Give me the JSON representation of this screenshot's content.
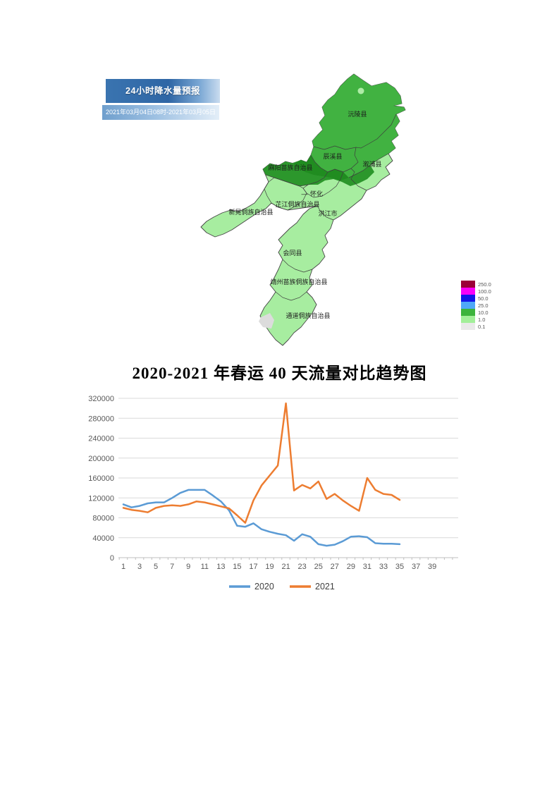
{
  "weather_map": {
    "title": "24小时降水量预报",
    "date_range": "2021年03月04日08时-2021年03月05日08时",
    "regions": [
      {
        "name": "沅陵县"
      },
      {
        "name": "辰溪县"
      },
      {
        "name": "溆浦县"
      },
      {
        "name": "麻阳苗族自治县"
      },
      {
        "name": "怀化"
      },
      {
        "name": "芷江侗族自治县"
      },
      {
        "name": "新晃侗族自治县"
      },
      {
        "name": "洪江市"
      },
      {
        "name": "会同县"
      },
      {
        "name": "靖州苗族侗族自治县"
      },
      {
        "name": "通道侗族自治县"
      }
    ],
    "hyphen_marker": "—",
    "fill_colors": {
      "light_rain": "#a7eda0",
      "medium_rain": "#41b241",
      "heavy_rain": "#2c972c",
      "heaviest_band": "#1f8a1f",
      "no_rain_patch": "#dcdcdc",
      "spot_dot": "#aeeca6"
    },
    "legend": {
      "items": [
        {
          "label": "250.0",
          "color": "#9b0038"
        },
        {
          "label": "100.0",
          "color": "#f800f8"
        },
        {
          "label": "50.0",
          "color": "#1414e8"
        },
        {
          "label": "25.0",
          "color": "#4fa8f8"
        },
        {
          "label": "10.0",
          "color": "#3cb43c"
        },
        {
          "label": "1.0",
          "color": "#a2ef99"
        },
        {
          "label": "0.1",
          "color": "#e9e9e9"
        }
      ]
    }
  },
  "chart_data": {
    "type": "line",
    "title": "2020-2021 年春运 40 天流量对比趋势图",
    "xlabel": "",
    "ylabel": "",
    "ylim": [
      0,
      320000
    ],
    "y_ticks": [
      0,
      40000,
      80000,
      120000,
      160000,
      200000,
      240000,
      280000,
      320000
    ],
    "x_tick_labels": [
      1,
      3,
      5,
      7,
      9,
      11,
      13,
      15,
      17,
      19,
      21,
      23,
      25,
      27,
      29,
      31,
      33,
      35,
      37,
      39
    ],
    "x_range": [
      1,
      40
    ],
    "grid": true,
    "legend_position": "bottom",
    "x": [
      1,
      2,
      3,
      4,
      5,
      6,
      7,
      8,
      9,
      10,
      11,
      12,
      13,
      14,
      15,
      16,
      17,
      18,
      19,
      20,
      21,
      22,
      23,
      24,
      25,
      26,
      27,
      28,
      29,
      30,
      31,
      32,
      33,
      34,
      35
    ],
    "series": [
      {
        "name": "2020",
        "color": "#5B9BD5",
        "values": [
          107000,
          101000,
          104000,
          109000,
          111000,
          111000,
          120000,
          130000,
          136000,
          136000,
          136000,
          125000,
          113000,
          95000,
          64000,
          62000,
          69000,
          57000,
          52000,
          48000,
          45000,
          34000,
          47000,
          42000,
          27000,
          24000,
          26000,
          33000,
          42000,
          43000,
          41000,
          29000,
          28000,
          28000,
          27000
        ]
      },
      {
        "name": "2021",
        "color": "#ED7D31",
        "values": [
          100000,
          96000,
          94000,
          91000,
          100000,
          104000,
          105000,
          104000,
          107000,
          113000,
          111000,
          107000,
          103000,
          99000,
          85000,
          70000,
          115000,
          145000,
          165000,
          185000,
          310000,
          135000,
          146000,
          139000,
          153000,
          118000,
          128000,
          115000,
          104000,
          94000,
          160000,
          136000,
          128000,
          126000,
          116000
        ]
      }
    ]
  }
}
